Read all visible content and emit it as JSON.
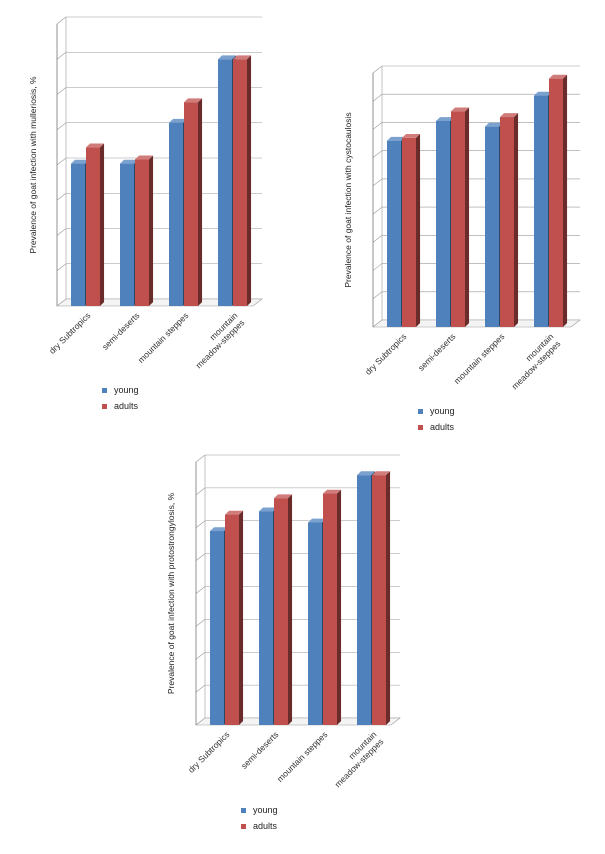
{
  "colors": {
    "young": "#4f81bd",
    "adults": "#c0504d",
    "grid": "#9a9a9a"
  },
  "chart_data": [
    {
      "type": "bar",
      "ylabel": "Prevalence of goat infection with mulleriosis, %",
      "categories": [
        "dry Subtropics",
        "semi-deserts",
        "mountain steppes",
        "mountain\nmeadow-steppes"
      ],
      "series": [
        {
          "name": "young",
          "values": [
            20.2,
            20.2,
            26,
            35
          ]
        },
        {
          "name": "adults",
          "values": [
            22.5,
            20.8,
            28.9,
            35
          ]
        }
      ],
      "ylim": [
        0,
        40
      ],
      "yticks": [
        0,
        5,
        10,
        15,
        20,
        25,
        30,
        35,
        40
      ],
      "grid": true,
      "legend": "bottom-left"
    },
    {
      "type": "bar",
      "ylabel": "Prevalence of goat infection with cystocaulosis",
      "categories": [
        "dry Subtropics",
        "semi-deserts",
        "mountain steppes",
        "mountain\nmeadow-steppes"
      ],
      "series": [
        {
          "name": "young",
          "values": [
            33,
            36.5,
            35.5,
            41
          ]
        },
        {
          "name": "adults",
          "values": [
            33.5,
            38.2,
            37.2,
            44
          ]
        }
      ],
      "ylim": [
        0,
        45
      ],
      "yticks": [
        0,
        5,
        10,
        15,
        20,
        25,
        30,
        35,
        40,
        45
      ],
      "grid": true,
      "legend": "bottom-left"
    },
    {
      "type": "bar",
      "ylabel": "Prevalence of goat infection with protostrongylosis, %",
      "categories": [
        "dry Subtropics",
        "semi-deserts",
        "mountain steppes",
        "mountain\nmeadow-steppes"
      ],
      "series": [
        {
          "name": "young",
          "values": [
            29.5,
            32.5,
            30.8,
            38
          ]
        },
        {
          "name": "adults",
          "values": [
            32,
            34.5,
            35.2,
            38
          ]
        }
      ],
      "ylim": [
        0,
        40
      ],
      "yticks": [
        0,
        5,
        10,
        15,
        20,
        25,
        30,
        35,
        40
      ],
      "grid": true,
      "legend": "bottom-left"
    }
  ]
}
